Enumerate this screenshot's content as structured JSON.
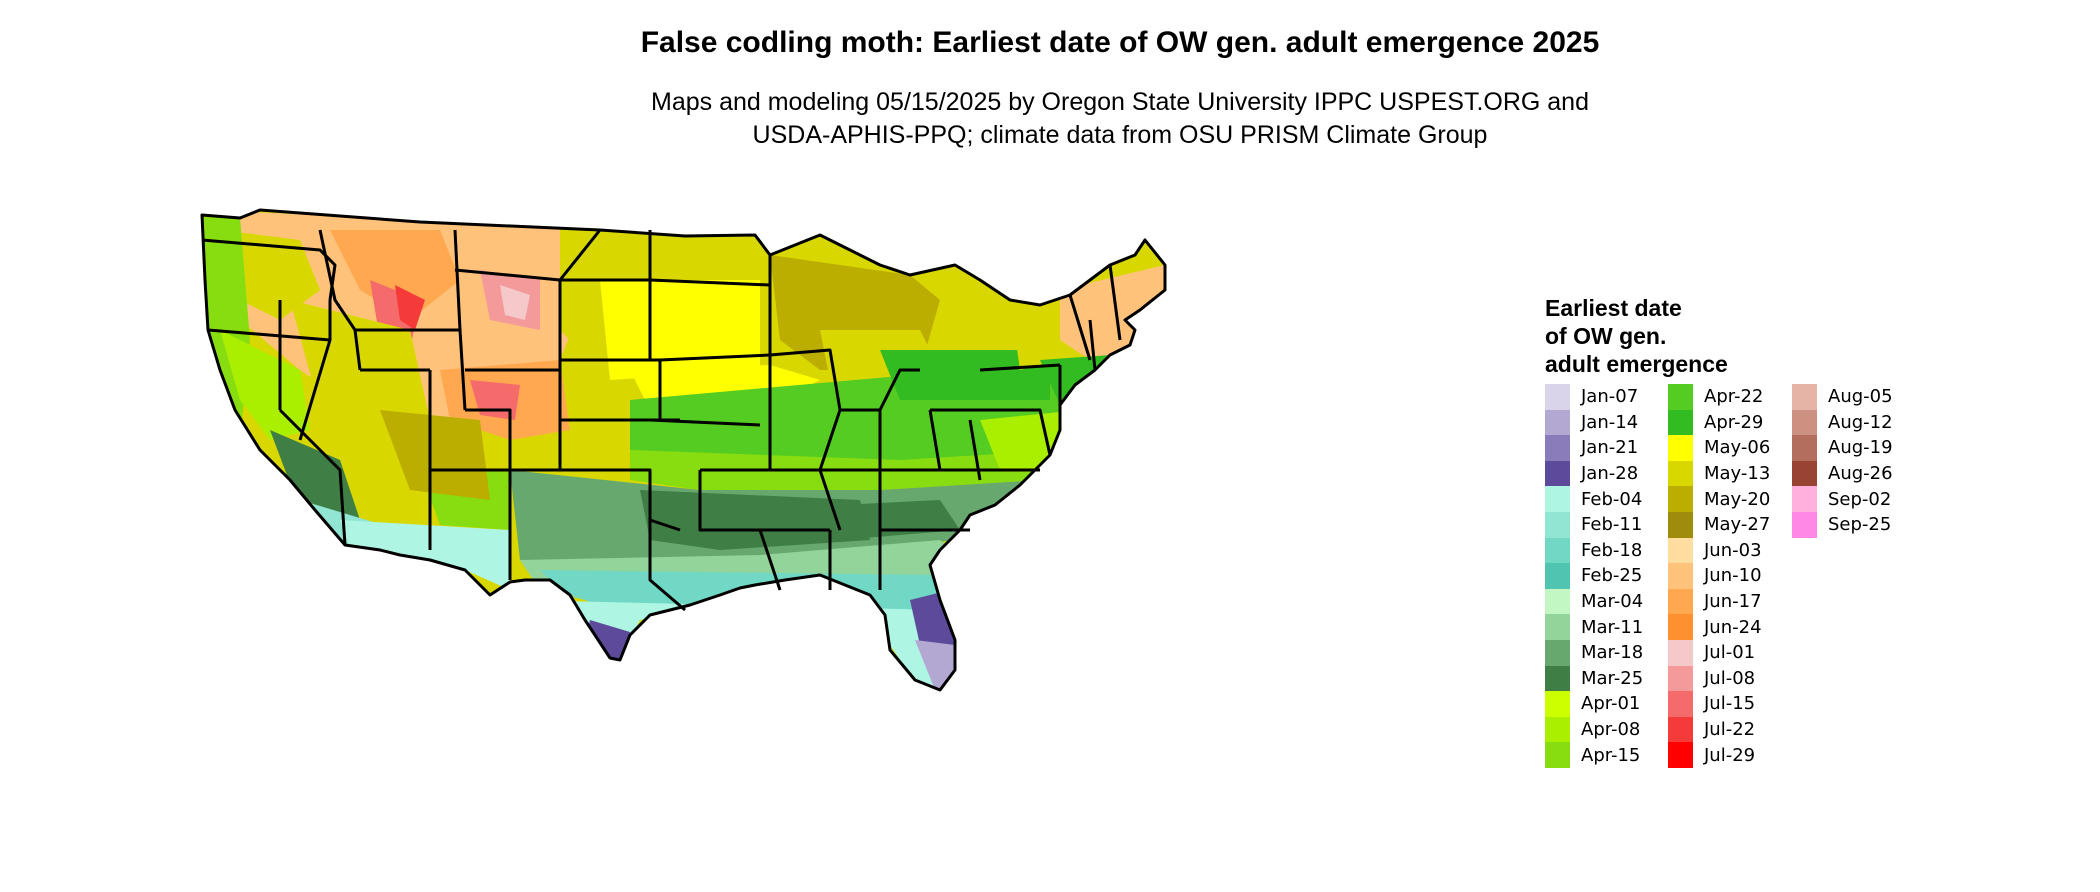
{
  "title": "False codling moth: Earliest date of OW gen. adult emergence 2025",
  "subtitle_line1": "Maps and modeling 05/15/2025 by Oregon State University IPPC USPEST.ORG and",
  "subtitle_line2": "USDA-APHIS-PPQ; climate data from OSU PRISM Climate Group",
  "legend": {
    "title_line1": "Earliest date",
    "title_line2": "of OW gen.",
    "title_line3": "adult emergence",
    "items": [
      {
        "label": "Jan-07",
        "color": "#DAD4EA"
      },
      {
        "label": "Jan-14",
        "color": "#B3A8D2"
      },
      {
        "label": "Jan-21",
        "color": "#8A7CBB"
      },
      {
        "label": "Jan-28",
        "color": "#5E4A9A"
      },
      {
        "label": "Feb-04",
        "color": "#AEF5E4"
      },
      {
        "label": "Feb-11",
        "color": "#90E6D2"
      },
      {
        "label": "Feb-18",
        "color": "#70D8C4"
      },
      {
        "label": "Feb-25",
        "color": "#50C4B0"
      },
      {
        "label": "Mar-04",
        "color": "#C2F6C2"
      },
      {
        "label": "Mar-11",
        "color": "#92D49A"
      },
      {
        "label": "Mar-18",
        "color": "#66A86E"
      },
      {
        "label": "Mar-25",
        "color": "#3F7E45"
      },
      {
        "label": "Apr-01",
        "color": "#CCFF00"
      },
      {
        "label": "Apr-08",
        "color": "#AAEE00"
      },
      {
        "label": "Apr-15",
        "color": "#88DD10"
      },
      {
        "label": "Apr-22",
        "color": "#55CC22"
      },
      {
        "label": "Apr-29",
        "color": "#33BB22"
      },
      {
        "label": "May-06",
        "color": "#FFFF00"
      },
      {
        "label": "May-13",
        "color": "#D8D800"
      },
      {
        "label": "May-20",
        "color": "#BBAE00"
      },
      {
        "label": "May-27",
        "color": "#A08C0C"
      },
      {
        "label": "Jun-03",
        "color": "#FFDDA0"
      },
      {
        "label": "Jun-10",
        "color": "#FFC27A"
      },
      {
        "label": "Jun-17",
        "color": "#FFA850"
      },
      {
        "label": "Jun-24",
        "color": "#FF9030"
      },
      {
        "label": "Jul-01",
        "color": "#F5C9C9"
      },
      {
        "label": "Jul-08",
        "color": "#F59A9A"
      },
      {
        "label": "Jul-15",
        "color": "#F56A6A"
      },
      {
        "label": "Jul-22",
        "color": "#F53A3A"
      },
      {
        "label": "Jul-29",
        "color": "#FF0000"
      },
      {
        "label": "Aug-05",
        "color": "#E6B4A6"
      },
      {
        "label": "Aug-12",
        "color": "#CC9180"
      },
      {
        "label": "Aug-19",
        "color": "#B36E5E"
      },
      {
        "label": "Aug-26",
        "color": "#994433"
      },
      {
        "label": "Sep-02",
        "color": "#FFB0DD"
      },
      {
        "label": "Sep-25",
        "color": "#FF88E6"
      }
    ]
  }
}
